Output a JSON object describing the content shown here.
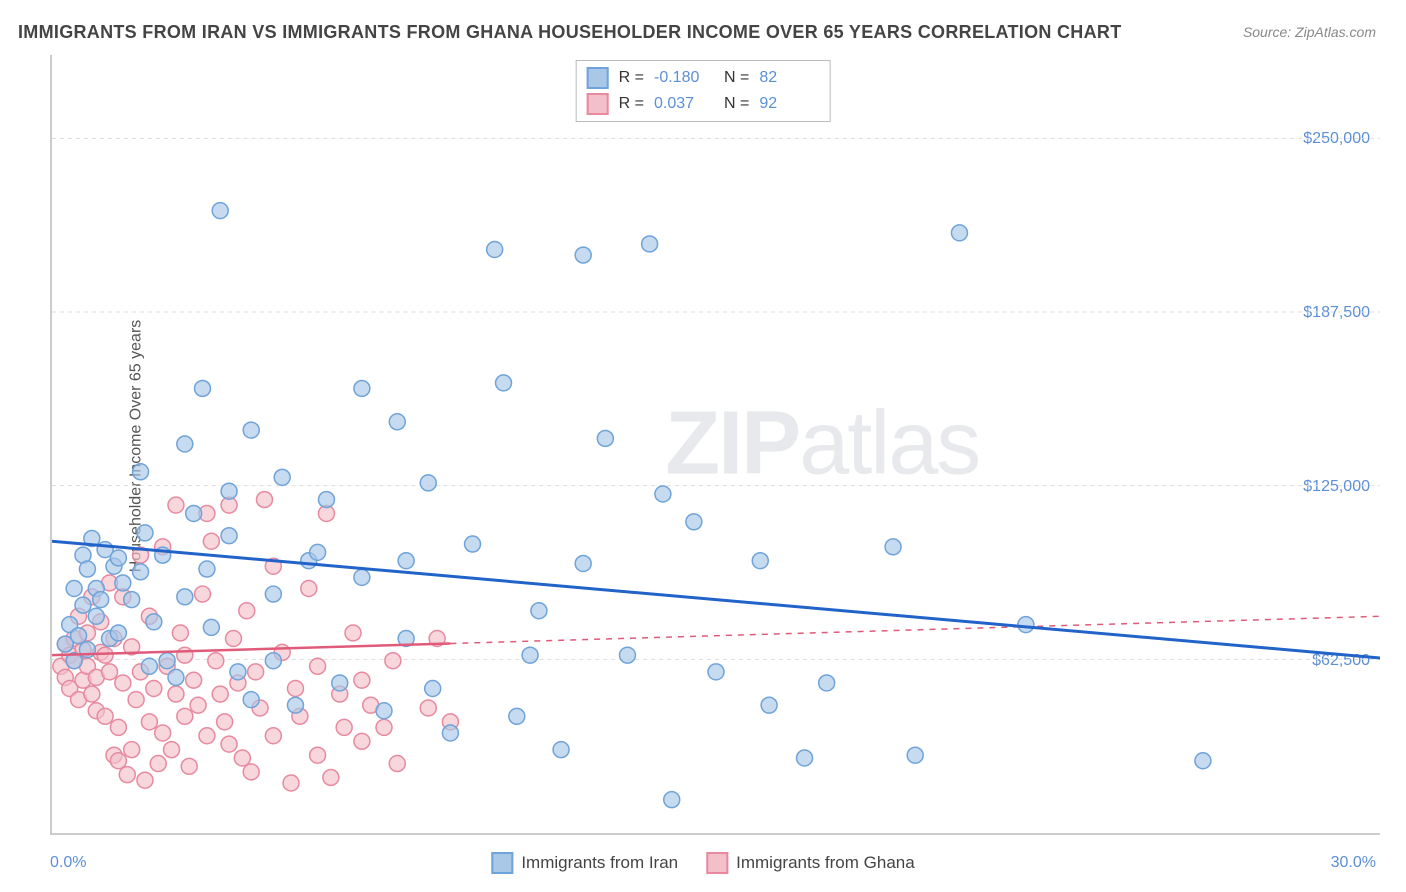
{
  "title": "IMMIGRANTS FROM IRAN VS IMMIGRANTS FROM GHANA HOUSEHOLDER INCOME OVER 65 YEARS CORRELATION CHART",
  "source": "Source: ZipAtlas.com",
  "y_axis_label": "Householder Income Over 65 years",
  "watermark_bold": "ZIP",
  "watermark_light": "atlas",
  "chart": {
    "type": "scatter",
    "xlim": [
      0,
      30
    ],
    "ylim": [
      0,
      280000
    ],
    "x_tick_left": "0.0%",
    "x_tick_right": "30.0%",
    "y_ticks": [
      {
        "value": 62500,
        "label": "$62,500"
      },
      {
        "value": 125000,
        "label": "$125,000"
      },
      {
        "value": 187500,
        "label": "$187,500"
      },
      {
        "value": 250000,
        "label": "$250,000"
      }
    ],
    "grid_color": "#dddddd",
    "axis_color": "#cccccc",
    "background_color": "#ffffff",
    "tick_label_color": "#5b8fd6",
    "series": [
      {
        "name": "Immigrants from Iran",
        "color_fill": "#a9c8e8",
        "color_stroke": "#6fa3d9",
        "trend_color": "#2163c9",
        "trend_solid": true,
        "trend_start_y": 105000,
        "trend_end_y": 63000,
        "trend_dash_from_x": 30,
        "R": "-0.180",
        "N": "82",
        "points": [
          [
            0.3,
            68000
          ],
          [
            0.4,
            75000
          ],
          [
            0.5,
            62000
          ],
          [
            0.5,
            88000
          ],
          [
            0.6,
            71000
          ],
          [
            0.7,
            100000
          ],
          [
            0.7,
            82000
          ],
          [
            0.8,
            95000
          ],
          [
            0.8,
            66000
          ],
          [
            0.9,
            106000
          ],
          [
            1.0,
            78000
          ],
          [
            1.0,
            88000
          ],
          [
            1.1,
            84000
          ],
          [
            1.2,
            102000
          ],
          [
            1.3,
            70000
          ],
          [
            1.4,
            96000
          ],
          [
            1.5,
            99000
          ],
          [
            1.5,
            72000
          ],
          [
            1.6,
            90000
          ],
          [
            1.8,
            84000
          ],
          [
            2.0,
            130000
          ],
          [
            2.0,
            94000
          ],
          [
            2.1,
            108000
          ],
          [
            2.2,
            60000
          ],
          [
            2.3,
            76000
          ],
          [
            2.5,
            100000
          ],
          [
            2.6,
            62000
          ],
          [
            2.8,
            56000
          ],
          [
            3.0,
            140000
          ],
          [
            3.0,
            85000
          ],
          [
            3.2,
            115000
          ],
          [
            3.4,
            160000
          ],
          [
            3.5,
            95000
          ],
          [
            3.6,
            74000
          ],
          [
            3.8,
            224000
          ],
          [
            4.0,
            107000
          ],
          [
            4.0,
            123000
          ],
          [
            4.2,
            58000
          ],
          [
            4.5,
            48000
          ],
          [
            4.5,
            145000
          ],
          [
            5.0,
            62000
          ],
          [
            5.0,
            86000
          ],
          [
            5.2,
            128000
          ],
          [
            5.5,
            46000
          ],
          [
            5.8,
            98000
          ],
          [
            6.0,
            101000
          ],
          [
            6.2,
            120000
          ],
          [
            6.5,
            54000
          ],
          [
            7.0,
            160000
          ],
          [
            7.0,
            92000
          ],
          [
            7.5,
            44000
          ],
          [
            7.8,
            148000
          ],
          [
            8.0,
            70000
          ],
          [
            8.0,
            98000
          ],
          [
            8.5,
            126000
          ],
          [
            8.6,
            52000
          ],
          [
            9.0,
            36000
          ],
          [
            9.5,
            104000
          ],
          [
            10.0,
            210000
          ],
          [
            10.2,
            162000
          ],
          [
            10.5,
            42000
          ],
          [
            10.8,
            64000
          ],
          [
            11.0,
            80000
          ],
          [
            11.5,
            30000
          ],
          [
            12.0,
            208000
          ],
          [
            12.0,
            97000
          ],
          [
            12.5,
            142000
          ],
          [
            13.0,
            64000
          ],
          [
            13.5,
            212000
          ],
          [
            13.8,
            122000
          ],
          [
            14.0,
            12000
          ],
          [
            14.5,
            112000
          ],
          [
            15.0,
            58000
          ],
          [
            16.0,
            98000
          ],
          [
            16.2,
            46000
          ],
          [
            17.0,
            27000
          ],
          [
            17.5,
            54000
          ],
          [
            19.0,
            103000
          ],
          [
            19.5,
            28000
          ],
          [
            20.5,
            216000
          ],
          [
            22.0,
            75000
          ],
          [
            26.0,
            26000
          ]
        ]
      },
      {
        "name": "Immigrants from Ghana",
        "color_fill": "#f3c0ca",
        "color_stroke": "#e78aa0",
        "trend_color": "#e05a7a",
        "trend_solid": false,
        "trend_start_y": 64000,
        "trend_end_y": 78000,
        "trend_dash_from_x": 9,
        "R": "0.037",
        "N": "92",
        "points": [
          [
            0.2,
            60000
          ],
          [
            0.3,
            56000
          ],
          [
            0.3,
            68000
          ],
          [
            0.4,
            64000
          ],
          [
            0.4,
            52000
          ],
          [
            0.5,
            62000
          ],
          [
            0.5,
            70000
          ],
          [
            0.6,
            48000
          ],
          [
            0.6,
            78000
          ],
          [
            0.7,
            66000
          ],
          [
            0.7,
            55000
          ],
          [
            0.8,
            72000
          ],
          [
            0.8,
            60000
          ],
          [
            0.9,
            50000
          ],
          [
            0.9,
            85000
          ],
          [
            1.0,
            56000
          ],
          [
            1.0,
            44000
          ],
          [
            1.1,
            76000
          ],
          [
            1.1,
            65000
          ],
          [
            1.2,
            64000
          ],
          [
            1.2,
            42000
          ],
          [
            1.3,
            90000
          ],
          [
            1.3,
            58000
          ],
          [
            1.4,
            28000
          ],
          [
            1.4,
            70000
          ],
          [
            1.5,
            26000
          ],
          [
            1.5,
            38000
          ],
          [
            1.6,
            85000
          ],
          [
            1.6,
            54000
          ],
          [
            1.7,
            21000
          ],
          [
            1.8,
            30000
          ],
          [
            1.8,
            67000
          ],
          [
            1.9,
            48000
          ],
          [
            2.0,
            100000
          ],
          [
            2.0,
            58000
          ],
          [
            2.1,
            19000
          ],
          [
            2.2,
            78000
          ],
          [
            2.2,
            40000
          ],
          [
            2.3,
            52000
          ],
          [
            2.4,
            25000
          ],
          [
            2.5,
            103000
          ],
          [
            2.5,
            36000
          ],
          [
            2.6,
            60000
          ],
          [
            2.7,
            30000
          ],
          [
            2.8,
            50000
          ],
          [
            2.8,
            118000
          ],
          [
            2.9,
            72000
          ],
          [
            3.0,
            42000
          ],
          [
            3.0,
            64000
          ],
          [
            3.1,
            24000
          ],
          [
            3.2,
            55000
          ],
          [
            3.3,
            46000
          ],
          [
            3.4,
            86000
          ],
          [
            3.5,
            115000
          ],
          [
            3.5,
            35000
          ],
          [
            3.6,
            105000
          ],
          [
            3.7,
            62000
          ],
          [
            3.8,
            50000
          ],
          [
            3.9,
            40000
          ],
          [
            4.0,
            118000
          ],
          [
            4.0,
            32000
          ],
          [
            4.1,
            70000
          ],
          [
            4.2,
            54000
          ],
          [
            4.3,
            27000
          ],
          [
            4.4,
            80000
          ],
          [
            4.5,
            22000
          ],
          [
            4.6,
            58000
          ],
          [
            4.7,
            45000
          ],
          [
            4.8,
            120000
          ],
          [
            5.0,
            96000
          ],
          [
            5.0,
            35000
          ],
          [
            5.2,
            65000
          ],
          [
            5.4,
            18000
          ],
          [
            5.5,
            52000
          ],
          [
            5.6,
            42000
          ],
          [
            5.8,
            88000
          ],
          [
            6.0,
            28000
          ],
          [
            6.0,
            60000
          ],
          [
            6.2,
            115000
          ],
          [
            6.3,
            20000
          ],
          [
            6.5,
            50000
          ],
          [
            6.6,
            38000
          ],
          [
            6.8,
            72000
          ],
          [
            7.0,
            55000
          ],
          [
            7.0,
            33000
          ],
          [
            7.2,
            46000
          ],
          [
            7.5,
            38000
          ],
          [
            7.7,
            62000
          ],
          [
            7.8,
            25000
          ],
          [
            8.5,
            45000
          ],
          [
            8.7,
            70000
          ],
          [
            9.0,
            40000
          ]
        ]
      }
    ]
  },
  "legend": {
    "series1_label": "Immigrants from Iran",
    "series2_label": "Immigrants from Ghana",
    "r_label": "R =",
    "n_label": "N ="
  }
}
